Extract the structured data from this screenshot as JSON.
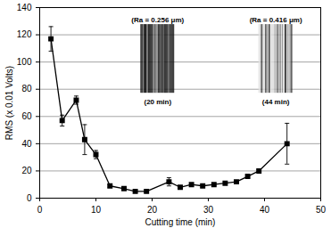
{
  "chart_data": {
    "type": "line",
    "x_label": "Cutting time (min)",
    "y_label": "RMS (x 0.01 Volts)",
    "x": [
      2,
      4,
      6.5,
      8,
      10,
      12.5,
      15,
      17,
      19,
      23,
      25,
      27,
      29,
      31,
      33,
      35,
      37,
      39,
      44
    ],
    "series": [
      {
        "name": "RMS",
        "color": "#000000",
        "marker": "square",
        "line_style": "solid",
        "values": [
          117,
          57,
          72,
          43,
          32,
          9,
          7,
          5,
          5,
          12,
          8,
          10,
          9,
          10,
          11,
          12,
          16,
          20,
          40
        ],
        "errors": [
          9,
          4,
          3,
          11,
          3,
          1,
          1,
          1,
          1,
          3,
          1,
          1,
          1,
          1,
          1,
          1,
          1,
          1,
          15
        ]
      }
    ],
    "annotations": [
      {
        "text": "(Ra = 0.256 μm)",
        "x": 21,
        "y": 131
      },
      {
        "text": "(20 min)",
        "x": 21,
        "y": 71
      },
      {
        "text": "(Ra = 0.416 μm)",
        "x": 42,
        "y": 131
      },
      {
        "text": "(44 min)",
        "x": 42,
        "y": 71
      }
    ],
    "xlim": [
      0,
      50
    ],
    "xticks": [
      0,
      10,
      20,
      30,
      40,
      50
    ],
    "ylim": [
      0,
      140
    ],
    "yticks": [
      0,
      20,
      40,
      60,
      80,
      100,
      120,
      140
    ],
    "grid": true
  }
}
